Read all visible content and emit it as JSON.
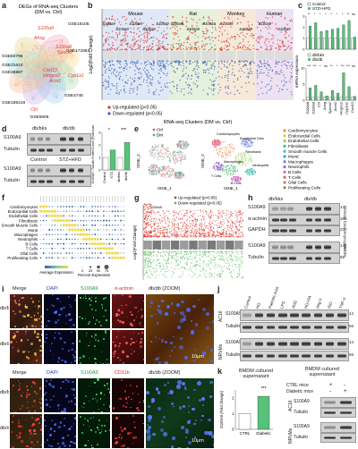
{
  "panel_letters": {
    "a": "a",
    "b": "b",
    "c": "c",
    "d": "d",
    "e": "e",
    "f": "f",
    "g": "g",
    "h": "h",
    "i": "i",
    "j": "j",
    "k": "k"
  },
  "panel_a": {
    "title_line1": "DEGs of RNA-seq Clusters",
    "title_line2": "(DM vs. Ctrl)",
    "datasets": [
      "GSE161052",
      "GSE173384",
      "GSE4745",
      "GSE5606",
      "GSE186418",
      "GSE26887",
      "GSE21610",
      "GSE84796"
    ],
    "genes": [
      "S100a9",
      "Ahsg",
      "S100a8",
      "Spock2",
      "Cxcl13",
      "Hmgcs2",
      "Cyp1a1",
      "Acot1",
      "Ctrl"
    ]
  },
  "panel_b": {
    "xlabel": "RNA-seq Clusters (DM vs. Ctrl)",
    "ylabel": "Log2(Fold Change)",
    "groups": [
      "Mouse",
      "Rat",
      "Monkey",
      "Human"
    ],
    "group_colors": [
      "#dfe8f6",
      "#e5f1dd",
      "#f6e9d8",
      "#eee1f2"
    ],
    "gene_tag": "S100a9",
    "legend": {
      "up": "Up-regulated (p<0.05)",
      "down": "Down-regulated (p<0.05)"
    }
  },
  "panel_c": {
    "legend_top": [
      "Control",
      "STZ+HFD"
    ],
    "legend_bottom": [
      "db/bks",
      "db/db"
    ],
    "ylabel": "mRNA expression",
    "genes": [
      "S100a8",
      "S100a9",
      "Ctrl",
      "Ahsg",
      "Spock2",
      "Acot1",
      "Hmgcs2",
      "Cyp1a1",
      "Cxcl13"
    ],
    "sig_top": [
      "**",
      "*",
      "*",
      "*",
      "*",
      "*",
      "*",
      "**",
      "ns"
    ],
    "sig_bottom": [
      "***",
      "***",
      "*",
      "ns",
      "**",
      "*",
      "***",
      "***",
      "ns"
    ],
    "colors": {
      "control": "#ffffff",
      "treated": "#57c27a"
    }
  },
  "panel_c_top_chart": {
    "type": "bar",
    "categories": [
      "S100a8",
      "S100a9",
      "Ctrl",
      "Ahsg",
      "Spock2",
      "Acot1",
      "Hmgcs2",
      "Cyp1a1",
      "Cxcl13"
    ],
    "series": [
      {
        "name": "Control",
        "values": [
          1,
          1,
          1,
          1,
          1,
          1,
          1,
          1,
          1
        ]
      },
      {
        "name": "STZ+HFD",
        "values": [
          2.1,
          2.4,
          1.6,
          1.7,
          1.8,
          1.9,
          2.2,
          2.6,
          1.1
        ]
      }
    ],
    "ylim": [
      0,
      3
    ],
    "yticks": [
      0,
      1,
      2,
      3
    ]
  },
  "panel_c_bottom_chart": {
    "type": "bar",
    "categories": [
      "S100a8",
      "S100a9",
      "Ctrl",
      "Ahsg",
      "Spock2",
      "Acot1",
      "Hmgcs2",
      "Cyp1a1",
      "Cxcl13"
    ],
    "series": [
      {
        "name": "db/bks",
        "values": [
          1,
          1,
          1,
          1,
          1,
          1,
          1,
          1,
          1
        ]
      },
      {
        "name": "db/db",
        "values": [
          3.8,
          4.6,
          2.6,
          1.3,
          3.0,
          2.2,
          8.5,
          4.2,
          1.2
        ]
      }
    ],
    "ylim": [
      0,
      10
    ],
    "yticks": [
      0,
      5,
      10
    ]
  },
  "panel_d": {
    "groups_top": [
      "db/bks",
      "db/db"
    ],
    "groups_bottom": [
      "Control",
      "STZ+HFD"
    ],
    "rows": [
      "S100A9",
      "Tubulin"
    ],
    "ylabel": "S100A9 / Tubulin Protein Level (Fold change)",
    "xcats": [
      "Control",
      "STZ",
      "db/bks",
      "db/db"
    ],
    "sig": [
      "*",
      "***"
    ]
  },
  "panel_d_chart": {
    "type": "bar",
    "categories": [
      "Control",
      "STZ",
      "db/bks",
      "db/db"
    ],
    "values": [
      1.0,
      1.6,
      1.0,
      2.2
    ],
    "ylim": [
      0,
      3
    ],
    "yticks": [
      0,
      1,
      2,
      3
    ]
  },
  "panel_e": {
    "legend_small": [
      "Ctrl",
      "DM"
    ],
    "axis_x": "tSNE_1",
    "axis_y": "tSNE_2",
    "cell_types": [
      "Cardiomyocytes",
      "Endocardial Cells",
      "Endothelial Cells",
      "Fibroblasts",
      "Smooth muscle Cells",
      "Mural",
      "Macrophages",
      "Neutrophils",
      "B Cells",
      "T Cells",
      "Glial Cells",
      "Proliferating Cells"
    ],
    "colors": [
      "#f08a5c",
      "#f2c14e",
      "#9ccf5b",
      "#55b978",
      "#4bc0b0",
      "#3f9ed6",
      "#6d83d8",
      "#9a6ad0",
      "#d06ac0",
      "#e0607e",
      "#b38b5d",
      "#8a8a8a"
    ],
    "cluster_labels": [
      "Cardiomyocytes",
      "Endothelial Cells",
      "Fibroblasts",
      "Macrophages",
      "Neutrophils",
      "B Cells",
      "T Cells"
    ]
  },
  "panel_f": {
    "rows": [
      "Cardiomyocytes",
      "Endocardial Cells",
      "Endothelial Cells",
      "Fibroblasts",
      "Smooth Muscle Cells",
      "Mural",
      "Macrophages",
      "Neutrophils",
      "B Cells",
      "T Cells",
      "Glial Cells",
      "Proliferating Cells"
    ],
    "legend_avg": "Average Expression",
    "legend_pct": "Percent Expression",
    "pct_ticks": [
      "0",
      "25",
      "50",
      "75"
    ]
  },
  "panel_g": {
    "ylabel": "Log2(Fold Change)",
    "legend": {
      "up": "Up-regulated (p<0.05)",
      "down": "Down-regulated (p<0.05)"
    },
    "gene_tag": "S100a9",
    "clusters": [
      "Cardiomyocytes",
      "Endothelial",
      "Fibroblasts",
      "Smooth Muscle",
      "Mural",
      "Macrophages",
      "Neutrophils",
      "B Cells",
      "T Cells",
      "Glial",
      "Proliferating"
    ]
  },
  "panel_h": {
    "groups": [
      "db/bks",
      "db/db"
    ],
    "side_top": "Primary Cardiomyocytes",
    "side_bottom": "BMDM",
    "rows_top": [
      "S100A9",
      "α-actinin",
      "GAPDH"
    ],
    "rows_bottom": [
      "S100A9",
      "Tubulin"
    ],
    "kda_top": [
      "14",
      "100",
      "37"
    ],
    "kda_bottom": [
      "14",
      "55"
    ]
  },
  "panel_i": {
    "row1_headers": [
      "Merge",
      "DAPI",
      "S100A9",
      "α-actinin",
      "db/db (ZOOM)"
    ],
    "row2_headers": [
      "Merge",
      "DAPI",
      "S100A9",
      "CD11b",
      "db/db (ZOOM)"
    ],
    "row_labels": [
      "db/bks",
      "db/db"
    ],
    "scalebar": "10μm"
  },
  "panel_j": {
    "columns": [
      "Control",
      "HG",
      "Palmitic Acid",
      "LPS",
      "AGE",
      "HG+PA",
      "Ang II",
      "ISO",
      "TNF-α"
    ],
    "side_top": "AC16",
    "side_bottom": "NRVMs",
    "rows": [
      "S100A9",
      "Tubulin"
    ],
    "kda": [
      "14",
      "55"
    ]
  },
  "panel_k": {
    "title_left": "BMDM cultured supernatant",
    "title_right": "BMDM cultured supernatant",
    "legend": [
      "CTRL mice",
      "Diabetic mice"
    ],
    "signs": [
      "+",
      "-",
      "-",
      "+"
    ],
    "ylabel": "S100A9 (Fold change)",
    "xcats": [
      "CTRL",
      "Diabetic"
    ],
    "sig": "***",
    "side": [
      "AC16",
      "NRVMs"
    ],
    "rows": [
      "S100A9",
      "Tubulin"
    ]
  },
  "panel_k_chart": {
    "type": "bar",
    "categories": [
      "CTRL",
      "Diabetic"
    ],
    "values": [
      1.0,
      2.1
    ],
    "ylim": [
      0,
      2.5
    ],
    "yticks": [
      0,
      1,
      2
    ]
  }
}
